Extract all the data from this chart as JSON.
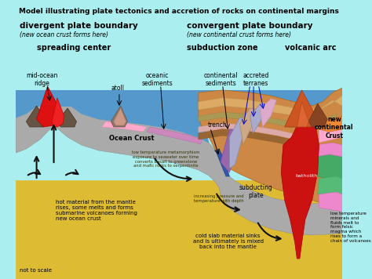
{
  "title": "Model illustrating plate tectonics and accretion of rocks on continental margins",
  "bg_color": "#aaeef0",
  "ocean_color": "#5599cc",
  "mantle_color": "#ddbb33",
  "labels": {
    "divergent_boundary": "divergent plate boundary",
    "divergent_sub": "(new ocean crust forms here)",
    "convergent_boundary": "convergent plate boundary",
    "convergent_sub": "(new continental crust forms here)",
    "spreading_center": "spreading center",
    "subduction_zone": "subduction zone",
    "volcanic_arc": "volcanic arc",
    "mid_ocean_ridge": "mid-ocean\nridge",
    "atoll": "atoll",
    "oceanic_sediments": "oceanic\nsediments",
    "ocean_crust": "Ocean Crust",
    "trench": "trench",
    "continental_sediments": "continental\nsediments",
    "accreted_terranes": "accreted\nterranes",
    "new_continental_crust": "new\ncontinental\nCrust",
    "subducting_plate": "subducting\nplate",
    "hot_material": "hot material from the mantle\nrises, some melts and forms\nsubmarine volcanoes forming\nnew ocean crust",
    "low_temp_left": "low temperature metamorphism\nexposure to seawater over time\nconverts basalt to greenstone\nand mafic rocks to serpentinite",
    "cold_slab": "cold slab material sinks\nand is ultimately is mixed\nback into the mantle",
    "increasing_pressure": "increasing pressure and\ntemperature with depth",
    "low_temp_right": "low temperature\nminerals and\nfluids melt to\nform felsic\nmagma which\nrises to form a\nchain of volcanoes",
    "not_to_scale": "not to scale",
    "batholith": "batholith"
  }
}
